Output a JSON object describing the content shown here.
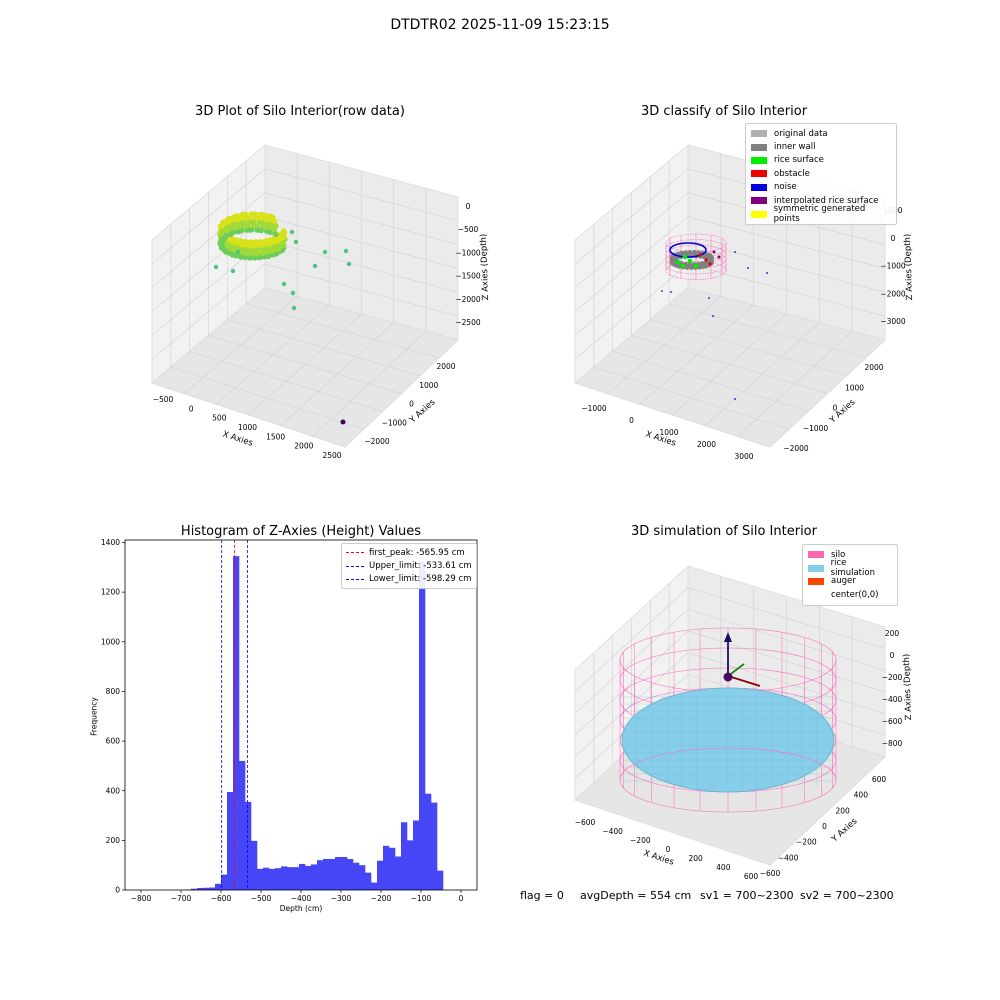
{
  "suptitle": "DTDTR02 2025-11-09 15:23:15",
  "status_line": {
    "flag": "flag = 0",
    "avg_depth": "avgDepth = 554 cm",
    "sv1": "sv1 = 700~2300",
    "sv2": "sv2 = 700~2300"
  },
  "chart_data": [
    {
      "type": "scatter",
      "projection": "3d",
      "title": "3D Plot of Silo Interior(row data)",
      "xlabel": "X Axies",
      "ylabel": "Y Axies",
      "zlabel": "Z Axies (Depth)",
      "x_ticks": [
        "−500",
        "0",
        "500",
        "1000",
        "1500",
        "2000",
        "2500"
      ],
      "y_ticks": [
        "−2000",
        "−1000",
        "0",
        "1000",
        "2000"
      ],
      "z_ticks": [
        "0",
        "−500",
        "−1000",
        "−1500",
        "−2000",
        "−2500"
      ],
      "colormap": "viridis",
      "grid": true
    },
    {
      "type": "scatter",
      "projection": "3d",
      "title": "3D classify of Silo Interior",
      "xlabel": "X Axies",
      "ylabel": "Y Axies",
      "zlabel": "Z Axies (Depth)",
      "x_ticks": [
        "−1000",
        "0",
        "1000",
        "2000",
        "3000"
      ],
      "y_ticks": [
        "−2000",
        "−1000",
        "0",
        "1000",
        "2000"
      ],
      "z_ticks": [
        "1000",
        "0",
        "−1000",
        "−2000",
        "−3000"
      ],
      "legend": [
        {
          "label": "original data",
          "color": "#b0b0b0"
        },
        {
          "label": "inner wall",
          "color": "#808080"
        },
        {
          "label": "rice surface",
          "color": "#00ee00"
        },
        {
          "label": "obstacle",
          "color": "#ee0000"
        },
        {
          "label": "noise",
          "color": "#0000dd"
        },
        {
          "label": "interpolated rice surface",
          "color": "#800080"
        },
        {
          "label": "symmetric generated points",
          "color": "#ffff00"
        }
      ],
      "legend_loc": "upper right",
      "grid": true
    },
    {
      "type": "bar",
      "title": "Histogram of Z-Axies (Height) Values",
      "xlabel": "Depth (cm)",
      "ylabel": "Frequency",
      "xlim": [
        -840,
        40
      ],
      "ylim": [
        0,
        1410
      ],
      "x_ticks": [
        -800,
        -700,
        -600,
        -500,
        -400,
        -300,
        -200,
        -100,
        0
      ],
      "y_ticks": [
        0,
        200,
        400,
        600,
        800,
        1000,
        1200,
        1400
      ],
      "bar_color": "#4646f6",
      "bin_width": 15,
      "bins": [
        {
          "x": -690,
          "y": 2
        },
        {
          "x": -675,
          "y": 5
        },
        {
          "x": -660,
          "y": 8
        },
        {
          "x": -645,
          "y": 9
        },
        {
          "x": -630,
          "y": 10
        },
        {
          "x": -615,
          "y": 25
        },
        {
          "x": -600,
          "y": 62
        },
        {
          "x": -585,
          "y": 395
        },
        {
          "x": -570,
          "y": 1345
        },
        {
          "x": -555,
          "y": 520
        },
        {
          "x": -540,
          "y": 355
        },
        {
          "x": -525,
          "y": 198
        },
        {
          "x": -510,
          "y": 85
        },
        {
          "x": -495,
          "y": 90
        },
        {
          "x": -480,
          "y": 85
        },
        {
          "x": -465,
          "y": 88
        },
        {
          "x": -450,
          "y": 95
        },
        {
          "x": -435,
          "y": 92
        },
        {
          "x": -420,
          "y": 92
        },
        {
          "x": -405,
          "y": 105
        },
        {
          "x": -390,
          "y": 97
        },
        {
          "x": -375,
          "y": 103
        },
        {
          "x": -360,
          "y": 120
        },
        {
          "x": -345,
          "y": 125
        },
        {
          "x": -330,
          "y": 125
        },
        {
          "x": -315,
          "y": 133
        },
        {
          "x": -300,
          "y": 133
        },
        {
          "x": -285,
          "y": 125
        },
        {
          "x": -270,
          "y": 110
        },
        {
          "x": -255,
          "y": 100
        },
        {
          "x": -240,
          "y": 70
        },
        {
          "x": -225,
          "y": 30
        },
        {
          "x": -210,
          "y": 118
        },
        {
          "x": -195,
          "y": 178
        },
        {
          "x": -180,
          "y": 170
        },
        {
          "x": -165,
          "y": 135
        },
        {
          "x": -150,
          "y": 273
        },
        {
          "x": -135,
          "y": 200
        },
        {
          "x": -120,
          "y": 280
        },
        {
          "x": -105,
          "y": 1323
        },
        {
          "x": -90,
          "y": 388
        },
        {
          "x": -75,
          "y": 352
        },
        {
          "x": -60,
          "y": 78
        }
      ],
      "vlines": [
        {
          "label": "first_peak: -565.95 cm",
          "x": -565.95,
          "color": "#ff0000"
        },
        {
          "label": "Upper_limit: -533.61 cm",
          "x": -533.61,
          "color": "#0000ff"
        },
        {
          "label": "Lower_limit: -598.29 cm",
          "x": -598.29,
          "color": "#0000ff"
        }
      ],
      "legend_loc": "upper right"
    },
    {
      "type": "scatter",
      "projection": "3d",
      "title": "3D simulation of Silo Interior",
      "xlabel": "X Axies",
      "ylabel": "Y Axies",
      "zlabel": "Z Axies (Depth)",
      "x_ticks": [
        "−600",
        "−400",
        "−200",
        "0",
        "200",
        "400",
        "600"
      ],
      "y_ticks": [
        "−600",
        "−400",
        "−200",
        "0",
        "200",
        "400",
        "600"
      ],
      "z_ticks": [
        "200",
        "0",
        "−200",
        "−400",
        "−600",
        "−800"
      ],
      "legend": [
        {
          "label": "silo",
          "color": "#ff69b4"
        },
        {
          "label": "rice simulation",
          "color": "#87ceeb"
        },
        {
          "label": "auger",
          "color": "#ff4500"
        },
        {
          "label": "center(0,0)",
          "color": "#ffffff"
        }
      ],
      "legend_loc": "upper right",
      "grid": true
    }
  ]
}
